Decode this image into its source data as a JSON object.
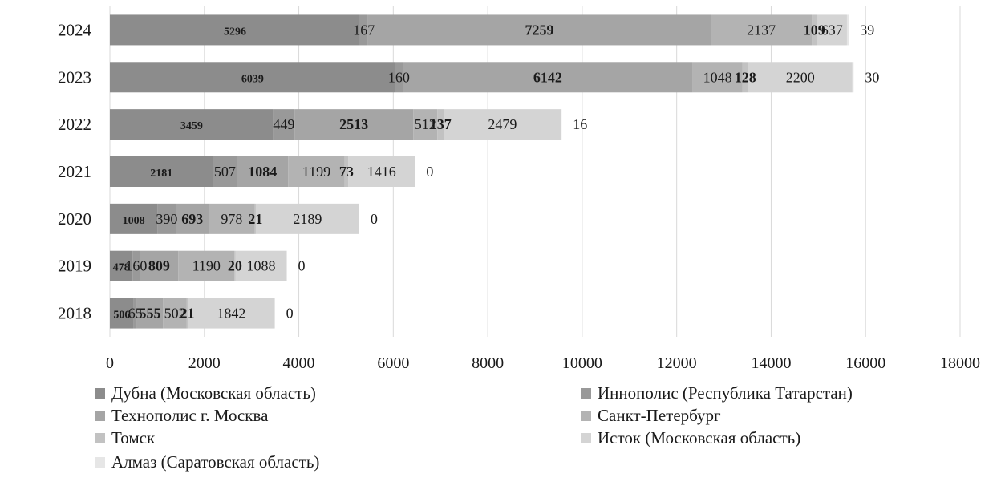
{
  "chart_data": {
    "type": "bar",
    "orientation": "horizontal",
    "stacked": true,
    "categories": [
      "2024",
      "2023",
      "2022",
      "2021",
      "2020",
      "2019",
      "2018"
    ],
    "series": [
      {
        "name": "Дубна (Московская область)",
        "color": "#8c8c8c",
        "values": [
          5296,
          6039,
          3459,
          2181,
          1008,
          478,
          506
        ]
      },
      {
        "name": "Иннополис (Республика Татарстан)",
        "color": "#999999",
        "values": [
          167,
          160,
          449,
          507,
          390,
          160,
          65
        ]
      },
      {
        "name": "Технополис г. Москва",
        "color": "#a5a5a5",
        "values": [
          7259,
          6142,
          2513,
          1084,
          693,
          809,
          555
        ]
      },
      {
        "name": "Санкт-Петербург",
        "color": "#b3b3b3",
        "values": [
          2137,
          1048,
          512,
          1199,
          978,
          1190,
          502
        ]
      },
      {
        "name": "Томск",
        "color": "#c2c2c2",
        "values": [
          109,
          128,
          137,
          73,
          21,
          20,
          21
        ]
      },
      {
        "name": "Исток (Московская область)",
        "color": "#d4d4d4",
        "values": [
          637,
          2200,
          2479,
          1416,
          2189,
          1088,
          1842
        ]
      },
      {
        "name": "Алмаз (Саратовская область)",
        "color": "#e6e6e6",
        "values": [
          39,
          30,
          16,
          0,
          0,
          0,
          0
        ]
      }
    ],
    "value_labels": [
      [
        "5296",
        "167",
        "7259",
        "2137",
        "109",
        "637",
        "39"
      ],
      [
        "6039",
        "160",
        "6142",
        "1048",
        "128",
        "2200",
        "30"
      ],
      [
        "3459",
        "449",
        "2513",
        "512",
        "137",
        "2479",
        "16"
      ],
      [
        "2181",
        "507",
        "1084",
        "1199",
        "73",
        "1416",
        "0"
      ],
      [
        "1008",
        "390",
        "693",
        "978",
        "21",
        "2189",
        "0"
      ],
      [
        "478",
        "160",
        "809",
        "1190",
        "20",
        "1088",
        "0"
      ],
      [
        "506",
        "65",
        "555",
        "502",
        "21",
        "1842",
        "0"
      ]
    ],
    "xlim": [
      0,
      18000
    ],
    "xticks": [
      0,
      2000,
      4000,
      6000,
      8000,
      10000,
      12000,
      14000,
      16000,
      18000
    ],
    "grid": true,
    "legend_position": "bottom"
  }
}
